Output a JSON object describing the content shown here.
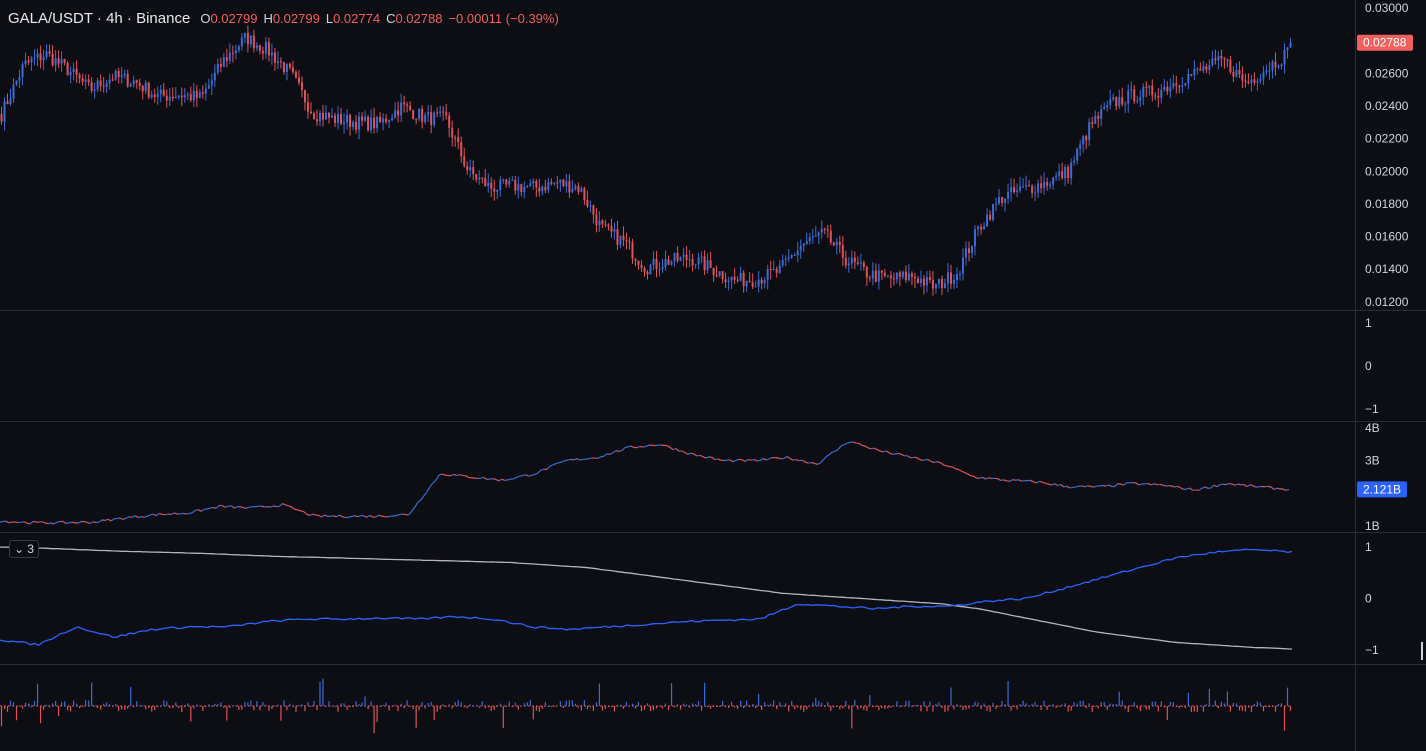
{
  "legend": {
    "symbol": "GALA/USDT · 4h · Binance",
    "o_label": "O",
    "o_value": "0.02799",
    "h_label": "H",
    "h_value": "0.02799",
    "l_label": "L",
    "l_value": "0.02774",
    "c_label": "C",
    "c_value": "0.02788",
    "change": "−0.00011 (−0.39%)"
  },
  "collapse": {
    "icon": "chevron-down-icon",
    "count": "3"
  },
  "colors": {
    "background": "#0d0e13",
    "up": "#3b6bd6",
    "down": "#e0525a",
    "divider": "#2a2e39",
    "price_badge": "#f0605e",
    "volume_badge": "#2962ff",
    "white_line": "#b2b5be"
  },
  "chart_data": [
    {
      "type": "candlestick",
      "pane": "price",
      "ylim": [
        0.0115,
        0.0305
      ],
      "yticks": [
        "0.03000",
        "0.02800",
        "0.02600",
        "0.02400",
        "0.02200",
        "0.02000",
        "0.01800",
        "0.01600",
        "0.01400",
        "0.01200"
      ],
      "yticks_values": [
        0.03,
        0.028,
        0.026,
        0.024,
        0.022,
        0.02,
        0.018,
        0.016,
        0.014,
        0.012
      ],
      "last_price_label": "0.02788",
      "last_price": 0.02788,
      "close_path": [
        0.0235,
        0.0265,
        0.0272,
        0.0262,
        0.025,
        0.0258,
        0.0255,
        0.0246,
        0.0247,
        0.0245,
        0.0268,
        0.0282,
        0.0274,
        0.026,
        0.0236,
        0.0232,
        0.023,
        0.0229,
        0.024,
        0.0233,
        0.0232,
        0.02,
        0.019,
        0.0191,
        0.019,
        0.0193,
        0.019,
        0.0165,
        0.0157,
        0.0141,
        0.0145,
        0.0147,
        0.014,
        0.0133,
        0.0134,
        0.0139,
        0.0155,
        0.0162,
        0.0146,
        0.0137,
        0.0134,
        0.0136,
        0.0129,
        0.0138,
        0.0166,
        0.0184,
        0.0189,
        0.0193,
        0.02,
        0.0228,
        0.0242,
        0.0247,
        0.0249,
        0.0256,
        0.0262,
        0.0268,
        0.0254,
        0.0264,
        0.0274
      ]
    },
    {
      "type": "line",
      "pane": "indicator-1",
      "ylim": [
        -1,
        1
      ],
      "yticks": [
        "1",
        "0",
        "−1"
      ],
      "yticks_values": [
        1,
        0,
        -1
      ]
    },
    {
      "type": "line",
      "pane": "volume-cumulative",
      "ylim": [
        1.0,
        4.0
      ],
      "yticks": [
        "4B",
        "3B",
        "2.121B",
        "1B"
      ],
      "yticks_values": [
        4,
        3,
        2.121,
        1
      ],
      "last_value_label": "2.121B",
      "last_value": 2.121,
      "values": [
        1.15,
        1.1,
        1.1,
        1.12,
        1.25,
        1.35,
        1.4,
        1.6,
        1.55,
        1.65,
        1.3,
        1.3,
        1.3,
        1.35,
        2.6,
        2.5,
        2.4,
        2.6,
        3.0,
        3.1,
        3.4,
        3.5,
        3.2,
        3.0,
        3.0,
        3.1,
        2.9,
        3.6,
        3.3,
        3.1,
        2.9,
        2.5,
        2.4,
        2.35,
        2.2,
        2.2,
        2.3,
        2.25,
        2.1,
        2.3,
        2.2,
        2.12
      ]
    },
    {
      "type": "line",
      "pane": "indicator-2",
      "ylim": [
        -1,
        1
      ],
      "yticks": [
        "1",
        "0",
        "−1"
      ],
      "yticks_values": [
        1,
        0,
        -1
      ],
      "series": [
        {
          "color": "#b2b5be",
          "values": [
            1.0,
            0.98,
            0.95,
            0.92,
            0.9,
            0.88,
            0.85,
            0.82,
            0.8,
            0.78,
            0.76,
            0.74,
            0.72,
            0.7,
            0.65,
            0.6,
            0.5,
            0.4,
            0.3,
            0.2,
            0.1,
            0.05,
            0.0,
            -0.05,
            -0.1,
            -0.2,
            -0.35,
            -0.5,
            -0.65,
            -0.75,
            -0.85,
            -0.9,
            -0.95,
            -0.98
          ]
        },
        {
          "color": "#2962ff",
          "values": [
            -0.8,
            -0.9,
            -0.55,
            -0.75,
            -0.6,
            -0.55,
            -0.55,
            -0.45,
            -0.4,
            -0.4,
            -0.38,
            -0.4,
            -0.35,
            -0.4,
            -0.55,
            -0.6,
            -0.55,
            -0.5,
            -0.45,
            -0.42,
            -0.4,
            -0.1,
            -0.15,
            -0.2,
            -0.15,
            -0.15,
            -0.05,
            0.0,
            0.2,
            0.4,
            0.6,
            0.8,
            0.9,
            0.95,
            0.9
          ]
        }
      ]
    },
    {
      "type": "bar",
      "pane": "histogram",
      "ylim": [
        -1,
        1
      ]
    }
  ]
}
